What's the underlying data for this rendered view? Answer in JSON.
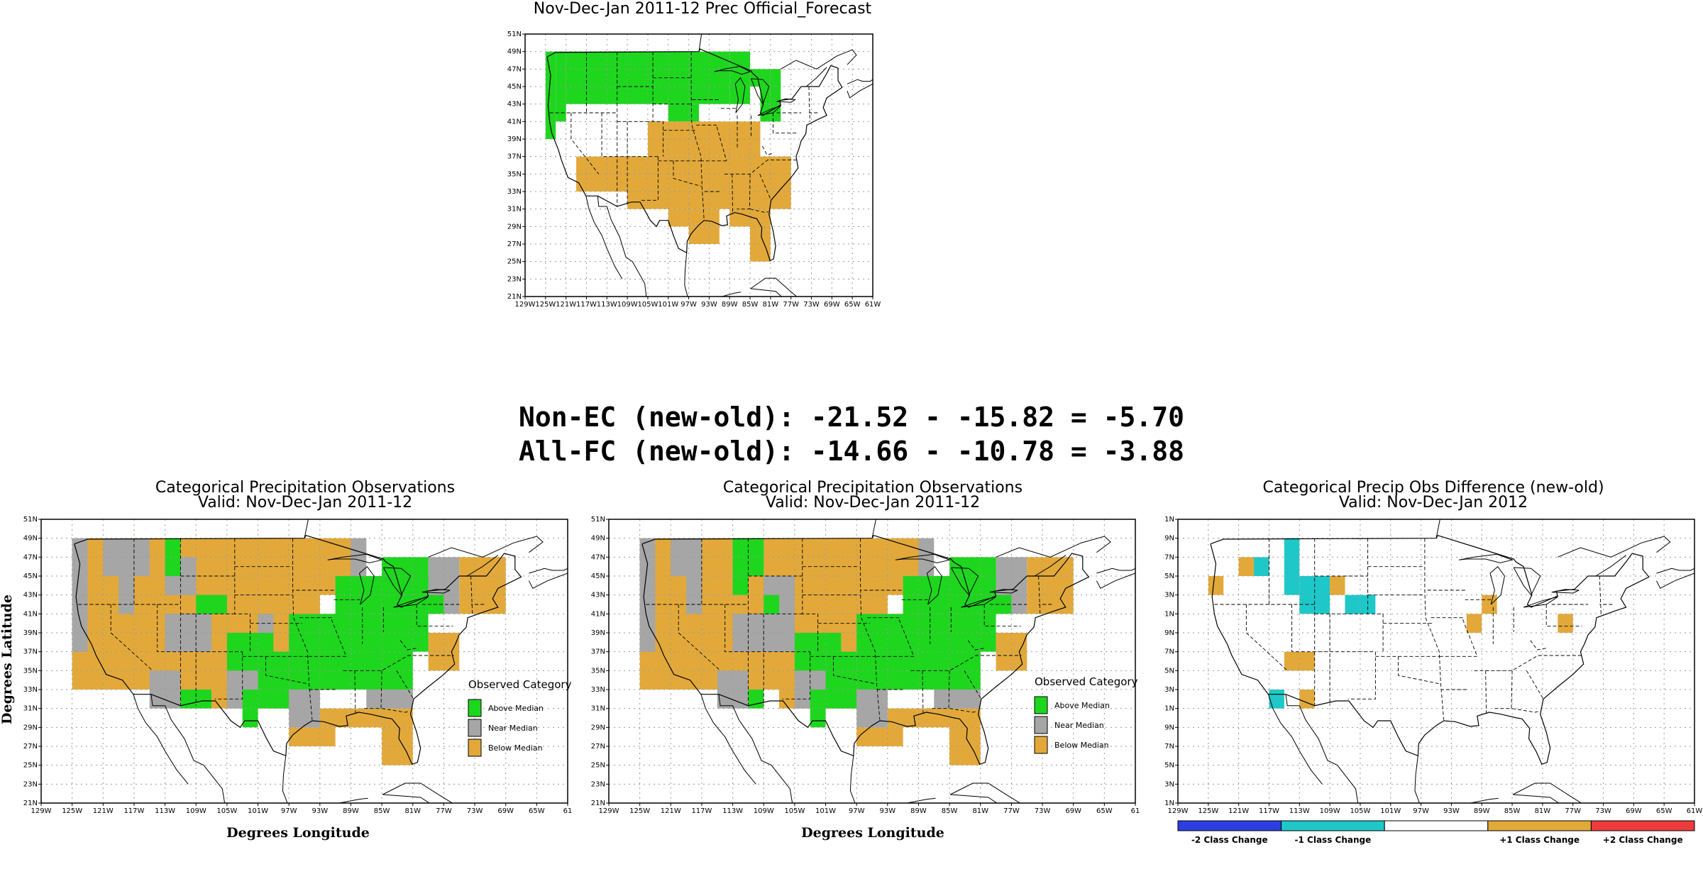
{
  "headlines": [
    "Non-EC (new-old): -21.52 - -15.82 = -5.70",
    "All-FC (new-old): -14.66 - -10.78 = -3.88"
  ],
  "colors": {
    "above": "#1ed61e",
    "near": "#a6a6a6",
    "below": "#e2a93a",
    "minus2": "#2b3fe0",
    "minus1": "#1ec8c8",
    "plus1": "#e2a93a",
    "plus2": "#ee3b3b"
  },
  "chart_data": [
    {
      "type": "heatmap",
      "title": "Nov-Dec-Jan 2011-12 Prec Official_Forecast",
      "subtitle": "",
      "xlabel": "",
      "ylabel": "",
      "xlim": [
        -129,
        -61
      ],
      "ylim": [
        21,
        51
      ],
      "xticks": [
        "129W",
        "125W",
        "121W",
        "117W",
        "113W",
        "109W",
        "105W",
        "101W",
        "97W",
        "93W",
        "89W",
        "85W",
        "81W",
        "77W",
        "73W",
        "69W",
        "65W",
        "61W"
      ],
      "yticks": [
        "21N",
        "23N",
        "25N",
        "27N",
        "29N",
        "31N",
        "33N",
        "35N",
        "37N",
        "39N",
        "41N",
        "43N",
        "45N",
        "47N",
        "49N",
        "51N"
      ],
      "grid": true,
      "legend": null,
      "series": [
        {
          "name": "",
          "category": "above",
          "cells": [
            [
              -125,
              39,
              2,
              10
            ],
            [
              -123,
              41,
              2,
              8
            ],
            [
              -121,
              43,
              32,
              6
            ],
            [
              -101,
              41,
              6,
              2
            ],
            [
              -89,
              43,
              4,
              6
            ],
            [
              -85,
              45,
              4,
              2
            ],
            [
              -83,
              43,
              2,
              2
            ],
            [
              -81,
              41,
              2,
              6
            ],
            [
              -83,
              41,
              2,
              2
            ]
          ]
        },
        {
          "name": "",
          "category": "below",
          "cells": [
            [
              -119,
              33,
              12,
              4
            ],
            [
              -109,
              31,
              32,
              6
            ],
            [
              -105,
              37,
              22,
              4
            ],
            [
              -101,
              29,
              10,
              2
            ],
            [
              -97,
              27,
              6,
              2
            ],
            [
              -85,
              25,
              4,
              6
            ],
            [
              -89,
              29,
              6,
              2
            ],
            [
              -87,
              31,
              6,
              2
            ],
            [
              -81,
              35,
              4,
              2
            ],
            [
              -79,
              33,
              2,
              2
            ],
            [
              -87,
              33,
              6,
              4
            ]
          ]
        }
      ]
    },
    {
      "type": "heatmap",
      "title": "Categorical Precipitation Observations",
      "subtitle": "Valid: Nov-Dec-Jan 2011-12",
      "xlabel": "Degrees Longitude",
      "ylabel": "Degrees Latitude",
      "xlim": [
        -129,
        -61
      ],
      "ylim": [
        21,
        51
      ],
      "xticks": [
        "129W",
        "125W",
        "121W",
        "117W",
        "113W",
        "109W",
        "105W",
        "101W",
        "97W",
        "93W",
        "89W",
        "85W",
        "81W",
        "77W",
        "73W",
        "69W",
        "65W",
        "61"
      ],
      "yticks": [
        "21N",
        "23N",
        "25N",
        "27N",
        "29N",
        "31N",
        "33N",
        "35N",
        "37N",
        "39N",
        "41N",
        "43N",
        "45N",
        "47N",
        "49N",
        "51N"
      ],
      "grid": true,
      "legend": {
        "title": "Observed Category",
        "items": [
          "Above Median",
          "Near Median",
          "Below Median"
        ]
      },
      "series": [
        {
          "name": "Below Median",
          "category": "below",
          "cells": [
            [
              -125,
              33,
              32,
              16
            ],
            [
              -107,
              31,
              14,
              4
            ],
            [
              -111,
              39,
              18,
              4
            ],
            [
              -97,
              27,
              6,
              2
            ],
            [
              -93,
              29,
              10,
              2
            ],
            [
              -85,
              25,
              4,
              6
            ],
            [
              -79,
              35,
              4,
              4
            ],
            [
              -75,
              41,
              6,
              6
            ],
            [
              -101,
              43,
              12,
              6
            ]
          ]
        },
        {
          "name": "Near Median",
          "category": "near",
          "cells": [
            [
              -125,
              37,
              2,
              12
            ],
            [
              -121,
              45,
              6,
              4
            ],
            [
              -113,
              37,
              6,
              4
            ],
            [
              -115,
              31,
              4,
              4
            ],
            [
              -105,
              31,
              4,
              4
            ],
            [
              -97,
              29,
              4,
              4
            ],
            [
              -87,
              31,
              6,
              2
            ],
            [
              -79,
              41,
              4,
              6
            ],
            [
              -83,
              37,
              2,
              4
            ],
            [
              -89,
              45,
              2,
              4
            ],
            [
              -119,
              41,
              2,
              4
            ],
            [
              -101,
              39,
              2,
              2
            ],
            [
              -113,
              43,
              4,
              4
            ]
          ]
        },
        {
          "name": "Above Median",
          "category": "above",
          "cells": [
            [
              -113,
              45,
              2,
              4
            ],
            [
              -109,
              41,
              4,
              2
            ],
            [
              -105,
              35,
              6,
              4
            ],
            [
              -101,
              31,
              4,
              6
            ],
            [
              -97,
              33,
              16,
              8
            ],
            [
              -91,
              37,
              12,
              8
            ],
            [
              -85,
              41,
              6,
              6
            ],
            [
              -81,
              41,
              4,
              2
            ],
            [
              -111,
              31,
              4,
              2
            ],
            [
              -103,
              29,
              2,
              4
            ]
          ]
        }
      ]
    },
    {
      "type": "heatmap",
      "title": "Categorical Precipitation Observations",
      "subtitle": "Valid: Nov-Dec-Jan 2011-12",
      "xlabel": "Degrees Longitude",
      "ylabel": "Degrees Latitude",
      "xlim": [
        -129,
        -61
      ],
      "ylim": [
        21,
        51
      ],
      "xticks": [
        "129W",
        "125W",
        "121W",
        "117W",
        "113W",
        "109W",
        "105W",
        "101W",
        "97W",
        "93W",
        "89W",
        "85W",
        "81W",
        "77W",
        "73W",
        "69W",
        "65W",
        "61"
      ],
      "yticks": [
        "21N",
        "23N",
        "25N",
        "27N",
        "29N",
        "31N",
        "33N",
        "35N",
        "37N",
        "39N",
        "41N",
        "43N",
        "45N",
        "47N",
        "49N",
        "51N"
      ],
      "grid": true,
      "legend": {
        "title": "Observed Category",
        "items": [
          "Above Median",
          "Near Median",
          "Below Median"
        ]
      },
      "series": [
        {
          "name": "Below Median",
          "category": "below",
          "cells": [
            [
              -125,
              33,
              32,
              16
            ],
            [
              -107,
              31,
              14,
              4
            ],
            [
              -111,
              39,
              18,
              4
            ],
            [
              -97,
              27,
              6,
              2
            ],
            [
              -93,
              29,
              10,
              2
            ],
            [
              -85,
              25,
              4,
              6
            ],
            [
              -79,
              35,
              4,
              4
            ],
            [
              -75,
              41,
              6,
              6
            ],
            [
              -101,
              43,
              12,
              6
            ]
          ]
        },
        {
          "name": "Near Median",
          "category": "near",
          "cells": [
            [
              -125,
              37,
              2,
              12
            ],
            [
              -121,
              45,
              4,
              4
            ],
            [
              -113,
              37,
              8,
              4
            ],
            [
              -115,
              31,
              4,
              4
            ],
            [
              -105,
              31,
              4,
              4
            ],
            [
              -97,
              29,
              4,
              4
            ],
            [
              -87,
              31,
              6,
              2
            ],
            [
              -79,
              41,
              4,
              6
            ],
            [
              -83,
              37,
              2,
              4
            ],
            [
              -89,
              45,
              2,
              4
            ],
            [
              -119,
              41,
              2,
              4
            ],
            [
              -109,
              41,
              4,
              4
            ],
            [
              -113,
              47,
              4,
              2
            ]
          ]
        },
        {
          "name": "Above Median",
          "category": "above",
          "cells": [
            [
              -113,
              43,
              2,
              6
            ],
            [
              -111,
              45,
              2,
              4
            ],
            [
              -105,
              35,
              6,
              4
            ],
            [
              -101,
              31,
              4,
              6
            ],
            [
              -97,
              33,
              16,
              8
            ],
            [
              -91,
              37,
              12,
              8
            ],
            [
              -85,
              41,
              6,
              6
            ],
            [
              -81,
              41,
              4,
              2
            ],
            [
              -111,
              31,
              2,
              2
            ],
            [
              -103,
              29,
              2,
              4
            ],
            [
              -109,
              41,
              2,
              2
            ]
          ]
        }
      ]
    },
    {
      "type": "heatmap",
      "title": "Categorical Precip Obs Difference (new-old)",
      "subtitle": "Valid: Nov-Dec-Jan 2012",
      "xlabel": "",
      "ylabel": "",
      "xlim": [
        -129,
        -61
      ],
      "ylim": [
        21,
        51
      ],
      "xticks": [
        "129W",
        "125W",
        "121W",
        "117W",
        "113W",
        "109W",
        "105W",
        "101W",
        "97W",
        "93W",
        "89W",
        "85W",
        "81W",
        "77W",
        "73W",
        "69W",
        "65W",
        "61W"
      ],
      "yticks": [
        "21N",
        "23N",
        "25N",
        "27N",
        "29N",
        "31N",
        "33N",
        "35N",
        "37N",
        "39N",
        "41N",
        "43N",
        "45N",
        "47N",
        "49N",
        "51N"
      ],
      "grid": true,
      "legend": {
        "title": "",
        "items": [
          "-2 Class Change",
          "-1 Class Change",
          "",
          "+1 Class Change",
          "+2 Class Change"
        ]
      },
      "series": [
        {
          "name": "-1 Class Change",
          "category": "minus1",
          "cells": [
            [
              -119,
              45,
              2,
              2
            ],
            [
              -115,
              43,
              2,
              6
            ],
            [
              -113,
              41,
              4,
              4
            ],
            [
              -111,
              43,
              2,
              2
            ],
            [
              -107,
              41,
              2,
              2
            ],
            [
              -105,
              41,
              2,
              2
            ],
            [
              -117,
              31,
              2,
              2
            ]
          ]
        },
        {
          "name": "+1 Class Change",
          "category": "plus1",
          "cells": [
            [
              -125,
              43,
              2,
              2
            ],
            [
              -121,
              45,
              2,
              2
            ],
            [
              -109,
              43,
              2,
              2
            ],
            [
              -115,
              35,
              4,
              2
            ],
            [
              -113,
              31,
              2,
              2
            ],
            [
              -91,
              39,
              2,
              2
            ],
            [
              -89,
              41,
              2,
              2
            ],
            [
              -79,
              39,
              2,
              2
            ]
          ]
        }
      ]
    }
  ]
}
